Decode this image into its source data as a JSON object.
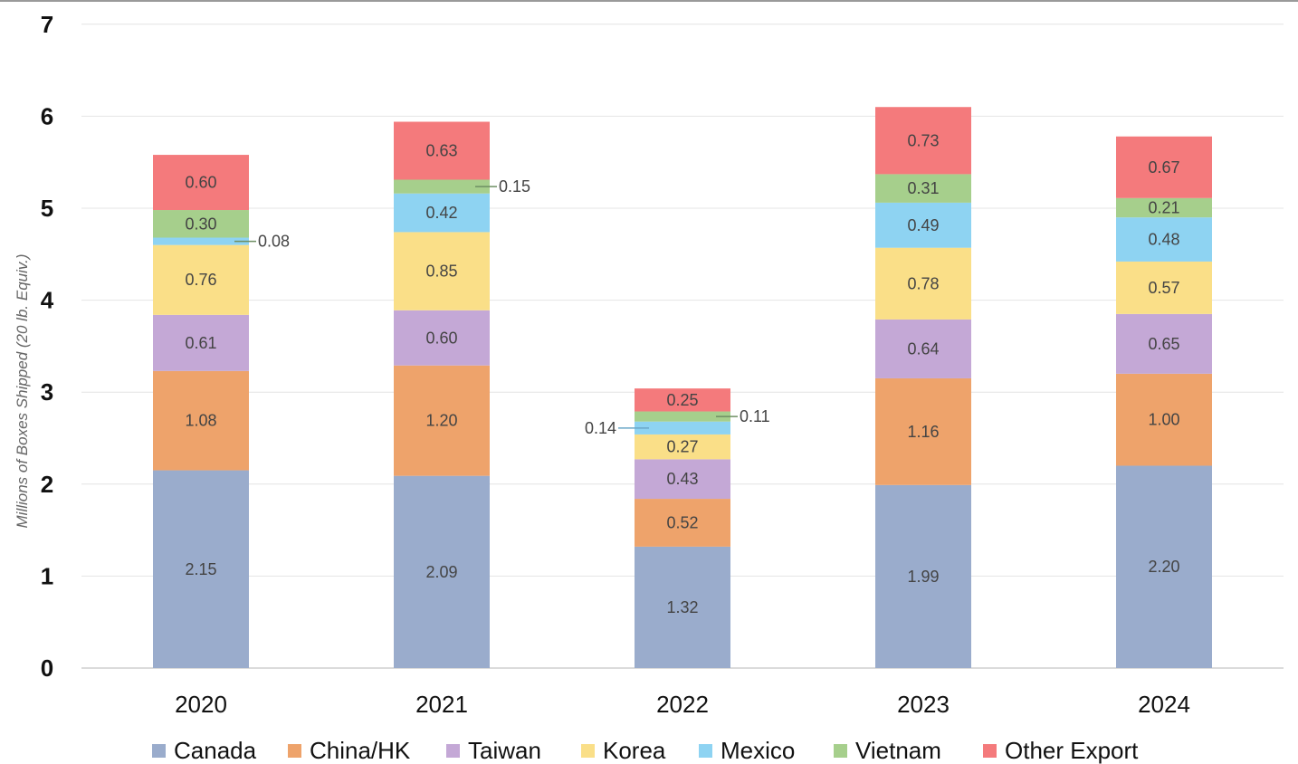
{
  "chart_data": {
    "type": "bar",
    "stacked": true,
    "title": "",
    "xlabel": "",
    "ylabel": "Millions of Boxes Shipped (20 lb. Equiv.)",
    "ylim": [
      0,
      7
    ],
    "yticks": [
      "0",
      "1",
      "2",
      "3",
      "4",
      "5",
      "6",
      "7"
    ],
    "grid": true,
    "legend": "bottom",
    "categories": [
      "2020",
      "2021",
      "2022",
      "2023",
      "2024"
    ],
    "series": [
      {
        "name": "Canada",
        "color": "#9aaccc",
        "values": [
          2.15,
          2.09,
          1.32,
          1.99,
          2.2
        ],
        "labels": [
          "2.15",
          "2.09",
          "1.32",
          "1.99",
          "2.20"
        ]
      },
      {
        "name": "China/HK",
        "color": "#eea36b",
        "values": [
          1.08,
          1.2,
          0.52,
          1.16,
          1.0
        ],
        "labels": [
          "1.08",
          "1.20",
          "0.52",
          "1.16",
          "1.00"
        ]
      },
      {
        "name": "Taiwan",
        "color": "#c4a8d6",
        "values": [
          0.61,
          0.6,
          0.43,
          0.64,
          0.65
        ],
        "labels": [
          "0.61",
          "0.60",
          "0.43",
          "0.64",
          "0.65"
        ]
      },
      {
        "name": "Korea",
        "color": "#fadf88",
        "values": [
          0.76,
          0.85,
          0.27,
          0.78,
          0.57
        ],
        "labels": [
          "0.76",
          "0.85",
          "0.27",
          "0.78",
          "0.57"
        ]
      },
      {
        "name": "Mexico",
        "color": "#8ed3f2",
        "values": [
          0.08,
          0.42,
          0.14,
          0.49,
          0.48
        ],
        "labels": [
          "0.08",
          "0.42",
          "0.14",
          "0.49",
          "0.48"
        ]
      },
      {
        "name": "Vietnam",
        "color": "#a6cf8c",
        "values": [
          0.3,
          0.15,
          0.11,
          0.31,
          0.21
        ],
        "labels": [
          "0.30",
          "0.15",
          "0.11",
          "0.31",
          "0.21"
        ]
      },
      {
        "name": "Other Export",
        "color": "#f47a7c",
        "values": [
          0.6,
          0.63,
          0.25,
          0.73,
          0.67
        ],
        "labels": [
          "0.60",
          "0.63",
          "0.25",
          "0.73",
          "0.67"
        ]
      }
    ]
  }
}
